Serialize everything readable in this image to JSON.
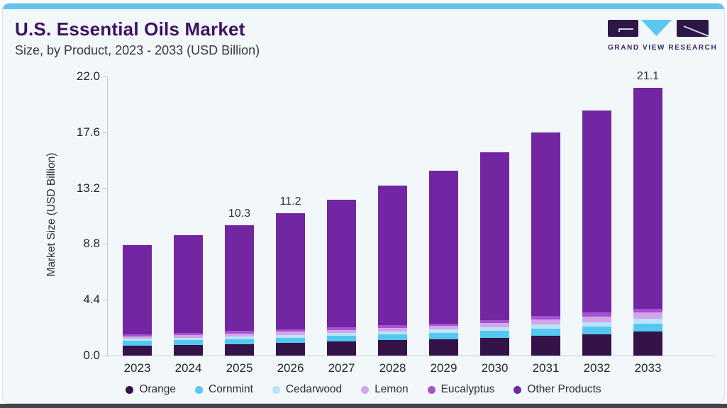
{
  "header": {
    "title": "U.S. Essential Oils Market",
    "subtitle": "Size, by Product, 2023 - 2033 (USD Billion)",
    "logo_text": "GRAND VIEW RESEARCH"
  },
  "brand_colors": {
    "accent_strip": "#61c3ee",
    "logo_purple": "#2e1745",
    "logo_blue": "#5ac8f0",
    "title_purple": "#3e1161"
  },
  "chart_data": {
    "type": "bar",
    "stacked": true,
    "title": "U.S. Essential Oils Market Size, by Product, 2023 - 2033 (USD Billion)",
    "xlabel": "",
    "ylabel": "Market Size (USD Billion)",
    "ylim": [
      0,
      22
    ],
    "yticks": [
      "22.0",
      "17.6",
      "13.2",
      "8.8",
      "4.4",
      "0.0"
    ],
    "grid": false,
    "legend_position": "bottom",
    "categories": [
      "2023",
      "2024",
      "2025",
      "2026",
      "2027",
      "2028",
      "2029",
      "2030",
      "2031",
      "2032",
      "2033"
    ],
    "series": [
      {
        "name": "Orange",
        "color": "#331348",
        "values": [
          0.8,
          0.85,
          0.92,
          1.0,
          1.1,
          1.21,
          1.3,
          1.42,
          1.57,
          1.67,
          1.92
        ]
      },
      {
        "name": "Cornmint",
        "color": "#55c8f2",
        "values": [
          0.35,
          0.37,
          0.39,
          0.42,
          0.44,
          0.46,
          0.48,
          0.51,
          0.56,
          0.61,
          0.62
        ]
      },
      {
        "name": "Cedarwood",
        "color": "#bce4f8",
        "values": [
          0.17,
          0.18,
          0.2,
          0.21,
          0.22,
          0.24,
          0.26,
          0.29,
          0.33,
          0.37,
          0.36
        ]
      },
      {
        "name": "Lemon",
        "color": "#d2a7ea",
        "values": [
          0.2,
          0.22,
          0.23,
          0.25,
          0.26,
          0.28,
          0.29,
          0.33,
          0.41,
          0.43,
          0.48
        ]
      },
      {
        "name": "Eucalyptus",
        "color": "#a751d3",
        "values": [
          0.18,
          0.19,
          0.19,
          0.19,
          0.19,
          0.19,
          0.19,
          0.23,
          0.28,
          0.31,
          0.32
        ]
      },
      {
        "name": "Other Products",
        "color": "#7226a2",
        "values": [
          7.0,
          7.69,
          8.37,
          9.13,
          10.09,
          11.02,
          12.08,
          13.22,
          14.45,
          15.91,
          17.4
        ]
      }
    ],
    "bar_labels": [
      "",
      "",
      "10.3",
      "11.2",
      "",
      "",
      "",
      "",
      "",
      "",
      "21.1"
    ]
  }
}
